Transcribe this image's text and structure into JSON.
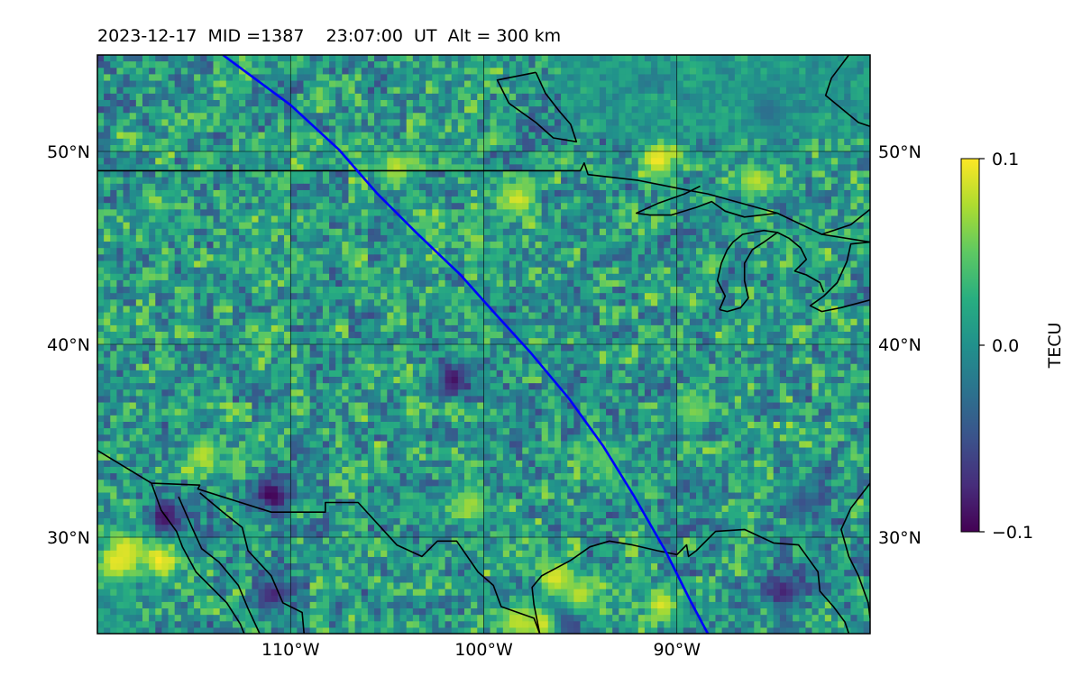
{
  "title": {
    "text": "2023-12-17  MID =1387    23:07:00  UT  Alt = 300 km"
  },
  "map": {
    "extent": {
      "lon_min": -120,
      "lon_max": -80,
      "lat_min": 25,
      "lat_max": 55
    },
    "gridlines": true,
    "lon_ticks": [
      {
        "value": -110,
        "label": "110°W"
      },
      {
        "value": -100,
        "label": "100°W"
      },
      {
        "value": -90,
        "label": "90°W"
      }
    ],
    "lat_ticks": [
      {
        "value": 50,
        "label": "50°N"
      },
      {
        "value": 40,
        "label": "40°N"
      },
      {
        "value": 30,
        "label": "30°N"
      }
    ],
    "track_color": "#0000ff",
    "track": [
      [
        -113.5,
        55
      ],
      [
        -110,
        52.4
      ],
      [
        -107.5,
        50.1
      ],
      [
        -105.5,
        47.8
      ],
      [
        -103.5,
        45.8
      ],
      [
        -101.2,
        43.6
      ],
      [
        -99.6,
        41.8
      ],
      [
        -97.6,
        39.6
      ],
      [
        -95.6,
        37.2
      ],
      [
        -93.8,
        34.7
      ],
      [
        -92.2,
        32.1
      ],
      [
        -90.6,
        29.3
      ],
      [
        -89.3,
        26.7
      ],
      [
        -88.4,
        25
      ]
    ],
    "border_color": "#000000",
    "borders": [
      [
        [
          -120,
          49
        ],
        [
          -95,
          49
        ],
        [
          -94.8,
          49.4
        ],
        [
          -94.6,
          48.8
        ],
        [
          -92,
          48.5
        ],
        [
          -89.5,
          48
        ],
        [
          -88.4,
          47.8
        ],
        [
          -84.8,
          46.8
        ],
        [
          -82.5,
          45.7
        ],
        [
          -80,
          45.3
        ]
      ],
      [
        [
          -120,
          34.5
        ],
        [
          -117.2,
          32.8
        ],
        [
          -114.7,
          32.7
        ],
        [
          -114.8,
          32.5
        ],
        [
          -111,
          31.3
        ],
        [
          -108.2,
          31.3
        ],
        [
          -108.2,
          31.8
        ],
        [
          -106.5,
          31.8
        ],
        [
          -104.5,
          29.6
        ],
        [
          -103.2,
          29
        ],
        [
          -102.4,
          29.8
        ],
        [
          -101.4,
          29.8
        ],
        [
          -100.3,
          28.2
        ],
        [
          -99.5,
          27.5
        ],
        [
          -99.1,
          26.4
        ],
        [
          -97.4,
          25.8
        ],
        [
          -97.1,
          25
        ]
      ],
      [
        [
          -114.7,
          32.3
        ],
        [
          -113.5,
          31.3
        ],
        [
          -112.5,
          30.5
        ],
        [
          -112.2,
          29.3
        ],
        [
          -111,
          28
        ],
        [
          -110.4,
          26.6
        ],
        [
          -109.4,
          26.1
        ],
        [
          -109.3,
          25
        ]
      ],
      [
        [
          -115.8,
          32.1
        ],
        [
          -115.1,
          30.5
        ],
        [
          -114.6,
          29.4
        ],
        [
          -113.7,
          28.7
        ],
        [
          -112.7,
          27.5
        ],
        [
          -112.2,
          26.3
        ],
        [
          -111.6,
          25
        ]
      ],
      [
        [
          -117.2,
          32.8
        ],
        [
          -116.7,
          31.4
        ],
        [
          -115.9,
          30.3
        ],
        [
          -115.6,
          29.5
        ],
        [
          -114.9,
          28.2
        ],
        [
          -114,
          27.3
        ],
        [
          -113.3,
          26.6
        ],
        [
          -112.6,
          25.5
        ],
        [
          -112.4,
          25
        ]
      ],
      [
        [
          -97.1,
          25
        ],
        [
          -97.4,
          26.5
        ],
        [
          -97.5,
          27.4
        ],
        [
          -97,
          28
        ],
        [
          -95.5,
          28.8
        ],
        [
          -94.5,
          29.5
        ],
        [
          -93.5,
          29.8
        ],
        [
          -92.3,
          29.6
        ],
        [
          -91,
          29.3
        ],
        [
          -90,
          29.1
        ],
        [
          -89.5,
          29.6
        ],
        [
          -89.4,
          29
        ],
        [
          -89,
          29.3
        ],
        [
          -88,
          30.3
        ],
        [
          -86.5,
          30.4
        ],
        [
          -85,
          29.7
        ],
        [
          -83.7,
          29.6
        ],
        [
          -82.7,
          28.2
        ],
        [
          -82.6,
          27.2
        ],
        [
          -81.9,
          26.4
        ],
        [
          -81.3,
          25.6
        ],
        [
          -81.1,
          25
        ]
      ],
      [
        [
          -80,
          32.8
        ],
        [
          -81,
          31.5
        ],
        [
          -81.5,
          30.4
        ],
        [
          -81.1,
          29
        ],
        [
          -80.6,
          28
        ],
        [
          -80.1,
          26.6
        ],
        [
          -80,
          25.8
        ]
      ],
      [
        [
          -80,
          45.3
        ],
        [
          -81,
          45.2
        ],
        [
          -81.2,
          44.3
        ],
        [
          -81.7,
          43.2
        ],
        [
          -82.4,
          42.5
        ],
        [
          -83.1,
          42
        ],
        [
          -82.5,
          41.7
        ],
        [
          -81.5,
          41.9
        ],
        [
          -80,
          42.3
        ]
      ],
      [
        [
          -87.8,
          41.8
        ],
        [
          -87.5,
          42.5
        ],
        [
          -87.9,
          43.3
        ],
        [
          -87.7,
          44.2
        ],
        [
          -87.4,
          44.9
        ],
        [
          -87.1,
          45.3
        ],
        [
          -86.6,
          45.7
        ],
        [
          -85.5,
          45.9
        ],
        [
          -84.8,
          45.8
        ],
        [
          -84.2,
          45.5
        ],
        [
          -83.6,
          45
        ],
        [
          -83.3,
          44.4
        ],
        [
          -83.9,
          43.8
        ],
        [
          -83.3,
          43.6
        ],
        [
          -82.6,
          43.2
        ],
        [
          -82.4,
          42.7
        ]
      ],
      [
        [
          -84.8,
          45.8
        ],
        [
          -85.5,
          45.3
        ],
        [
          -86.1,
          44.9
        ],
        [
          -86.5,
          44.2
        ],
        [
          -86.5,
          43.3
        ],
        [
          -86.3,
          42.4
        ],
        [
          -86.7,
          41.9
        ],
        [
          -87.4,
          41.7
        ],
        [
          -87.8,
          41.8
        ]
      ],
      [
        [
          -84.8,
          46.8
        ],
        [
          -86.5,
          46.6
        ],
        [
          -87.5,
          46.9
        ],
        [
          -88.2,
          47.4
        ],
        [
          -89,
          47.1
        ],
        [
          -90.3,
          46.7
        ],
        [
          -91.4,
          46.7
        ],
        [
          -92.1,
          46.8
        ],
        [
          -91,
          47.3
        ],
        [
          -89.6,
          47.8
        ],
        [
          -88.8,
          48.2
        ]
      ],
      [
        [
          -80,
          47
        ],
        [
          -81,
          46.2
        ],
        [
          -82.5,
          45.7
        ]
      ],
      [
        [
          -97.3,
          54.1
        ],
        [
          -96.8,
          53
        ],
        [
          -96.1,
          52.1
        ],
        [
          -95.5,
          51.4
        ],
        [
          -95.2,
          50.5
        ],
        [
          -96.4,
          50.7
        ],
        [
          -97.3,
          51.5
        ],
        [
          -98.7,
          52.5
        ],
        [
          -99.3,
          53.7
        ],
        [
          -97.3,
          54.1
        ]
      ],
      [
        [
          -81.1,
          55
        ],
        [
          -82,
          53.8
        ],
        [
          -82.3,
          52.9
        ],
        [
          -80.6,
          51.5
        ],
        [
          -80,
          51.3
        ]
      ]
    ],
    "heatmap": {
      "colormap": "viridis",
      "vmin": -0.1,
      "vmax": 0.1,
      "hotspots": [
        {
          "lon": -119,
          "lat": 28.7,
          "value": 0.1
        },
        {
          "lon": -116.8,
          "lat": 28.8,
          "value": 0.1
        },
        {
          "lon": -114.5,
          "lat": 34.3,
          "value": 0.08
        },
        {
          "lon": -118.5,
          "lat": 29.3,
          "value": 0.09
        },
        {
          "lon": -116.5,
          "lat": 31,
          "value": -0.09
        },
        {
          "lon": -111,
          "lat": 32.2,
          "value": -0.1
        },
        {
          "lon": -110.9,
          "lat": 27,
          "value": -0.08
        },
        {
          "lon": -96,
          "lat": 25.7,
          "value": -0.1
        },
        {
          "lon": -97,
          "lat": 25.5,
          "value": 0.09
        },
        {
          "lon": -98.3,
          "lat": 25.6,
          "value": 0.08
        },
        {
          "lon": -95,
          "lat": 27,
          "value": 0.08
        },
        {
          "lon": -96.3,
          "lat": 27.9,
          "value": 0.09
        },
        {
          "lon": -91,
          "lat": 49.6,
          "value": 0.1
        },
        {
          "lon": -98.3,
          "lat": 47.5,
          "value": 0.09
        },
        {
          "lon": -85.9,
          "lat": 48.5,
          "value": 0.08
        },
        {
          "lon": -85.3,
          "lat": 52,
          "value": -0.07
        },
        {
          "lon": -90.8,
          "lat": 26.5,
          "value": 0.09
        },
        {
          "lon": -84.5,
          "lat": 27.2,
          "value": -0.08
        },
        {
          "lon": -101.6,
          "lat": 38.2,
          "value": -0.09
        },
        {
          "lon": -100.7,
          "lat": 31.7,
          "value": 0.07
        },
        {
          "lon": -104.5,
          "lat": 49.2,
          "value": 0.08
        },
        {
          "lon": -93.8,
          "lat": 34.2,
          "value": 0.05
        },
        {
          "lon": -89.2,
          "lat": 36.5,
          "value": 0.06
        },
        {
          "lon": -83.5,
          "lat": 31.8,
          "value": -0.05
        }
      ]
    }
  },
  "colorbar": {
    "label": "TECU",
    "ticks": [
      {
        "value": 0.1,
        "label": "0.1"
      },
      {
        "value": 0.0,
        "label": "0.0"
      },
      {
        "value": -0.1,
        "label": "−0.1"
      }
    ]
  }
}
